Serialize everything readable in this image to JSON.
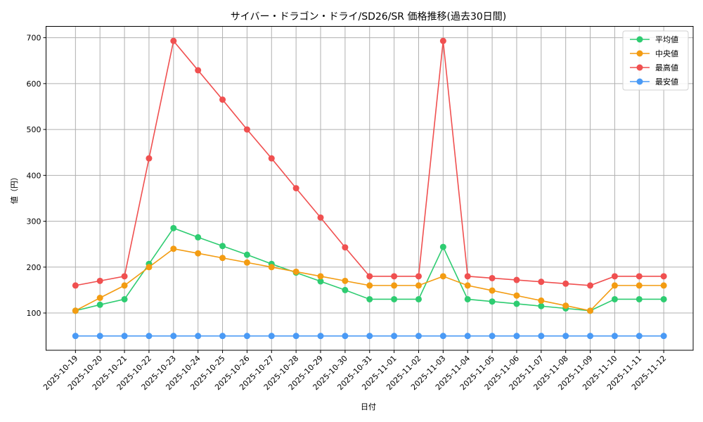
{
  "chart_data": {
    "type": "line",
    "title": "サイバー・ドラゴン・ドライ/SD26/SR 価格推移(過去30日間)",
    "xlabel": "日付",
    "ylabel": "値（円）",
    "x": [
      "2025-10-19",
      "2025-10-20",
      "2025-10-21",
      "2025-10-22",
      "2025-10-23",
      "2025-10-24",
      "2025-10-25",
      "2025-10-26",
      "2025-10-27",
      "2025-10-28",
      "2025-10-29",
      "2025-10-30",
      "2025-10-31",
      "2025-11-01",
      "2025-11-02",
      "2025-11-03",
      "2025-11-04",
      "2025-11-05",
      "2025-11-06",
      "2025-11-07",
      "2025-11-08",
      "2025-11-09",
      "2025-11-10",
      "2025-11-11",
      "2025-11-12"
    ],
    "series": [
      {
        "name": "平均値",
        "color": "#2ecc71",
        "values": [
          105,
          118,
          130,
          207,
          285,
          265,
          246,
          227,
          207,
          188,
          169,
          150,
          130,
          130,
          130,
          244,
          130,
          125,
          120,
          115,
          110,
          105,
          130,
          130,
          130
        ]
      },
      {
        "name": "中央値",
        "color": "#f39c12",
        "values": [
          105,
          133,
          160,
          200,
          240,
          230,
          220,
          210,
          200,
          190,
          180,
          170,
          160,
          160,
          160,
          180,
          160,
          149,
          138,
          127,
          116,
          105,
          160,
          160,
          160
        ]
      },
      {
        "name": "最高値",
        "color": "#f05050",
        "values": [
          160,
          170,
          180,
          437,
          693,
          629,
          565,
          500,
          437,
          372,
          308,
          243,
          180,
          180,
          180,
          693,
          180,
          176,
          172,
          168,
          164,
          160,
          180,
          180,
          180
        ]
      },
      {
        "name": "最安値",
        "color": "#4a9af5",
        "values": [
          50,
          50,
          50,
          50,
          50,
          50,
          50,
          50,
          50,
          50,
          50,
          50,
          50,
          50,
          50,
          50,
          50,
          50,
          50,
          50,
          50,
          50,
          50,
          50,
          50
        ]
      }
    ],
    "yticks": [
      100,
      200,
      300,
      400,
      500,
      600,
      700
    ],
    "ylim": [
      18.8,
      724.7
    ],
    "grid": true,
    "legend_position": "upper right",
    "markers": "circle"
  }
}
